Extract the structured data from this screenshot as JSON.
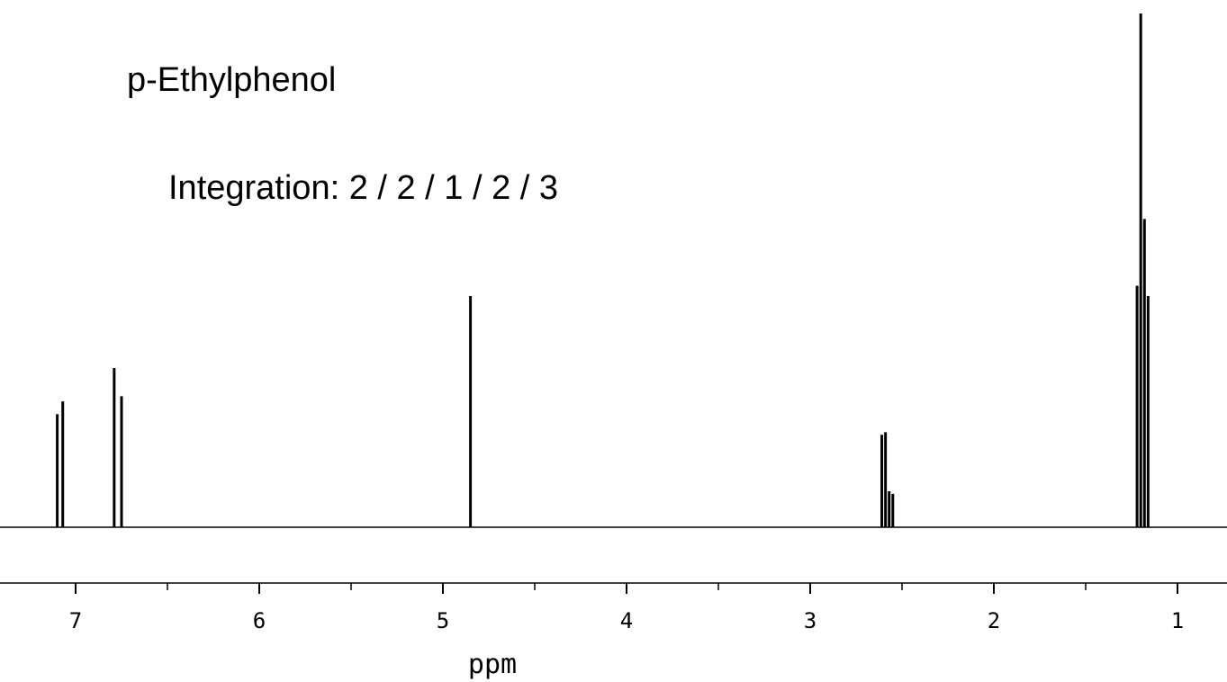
{
  "chart_data": {
    "type": "line",
    "title": "p-Ethylphenol",
    "annotation": "Integration: 2 / 2 / 1 / 2 / 3",
    "xlabel": "ppm",
    "ylabel": "",
    "xlim": [
      7.4,
      0.75
    ],
    "x_reversed": true,
    "ylim": [
      0,
      100
    ],
    "grid": false,
    "x_major_ticks": [
      7,
      6,
      5,
      4,
      3,
      2,
      1
    ],
    "x_tick_labels": [
      "7",
      "6",
      "5",
      "4",
      "3",
      "2",
      "1"
    ],
    "x_minor_ticks": [
      6.5,
      5.5,
      4.5,
      3.5,
      2.5,
      1.5
    ],
    "color": "#000000",
    "peaks": [
      {
        "x": 7.1,
        "y": 22.0
      },
      {
        "x": 7.07,
        "y": 24.5
      },
      {
        "x": 6.79,
        "y": 31.0
      },
      {
        "x": 6.75,
        "y": 25.5
      },
      {
        "x": 4.85,
        "y": 45.0
      },
      {
        "x": 2.61,
        "y": 18.0
      },
      {
        "x": 2.59,
        "y": 18.5
      },
      {
        "x": 2.57,
        "y": 7.0
      },
      {
        "x": 2.55,
        "y": 6.5
      },
      {
        "x": 1.22,
        "y": 47.0
      },
      {
        "x": 1.2,
        "y": 100.0
      },
      {
        "x": 1.18,
        "y": 60.0
      },
      {
        "x": 1.16,
        "y": 45.0
      }
    ]
  }
}
